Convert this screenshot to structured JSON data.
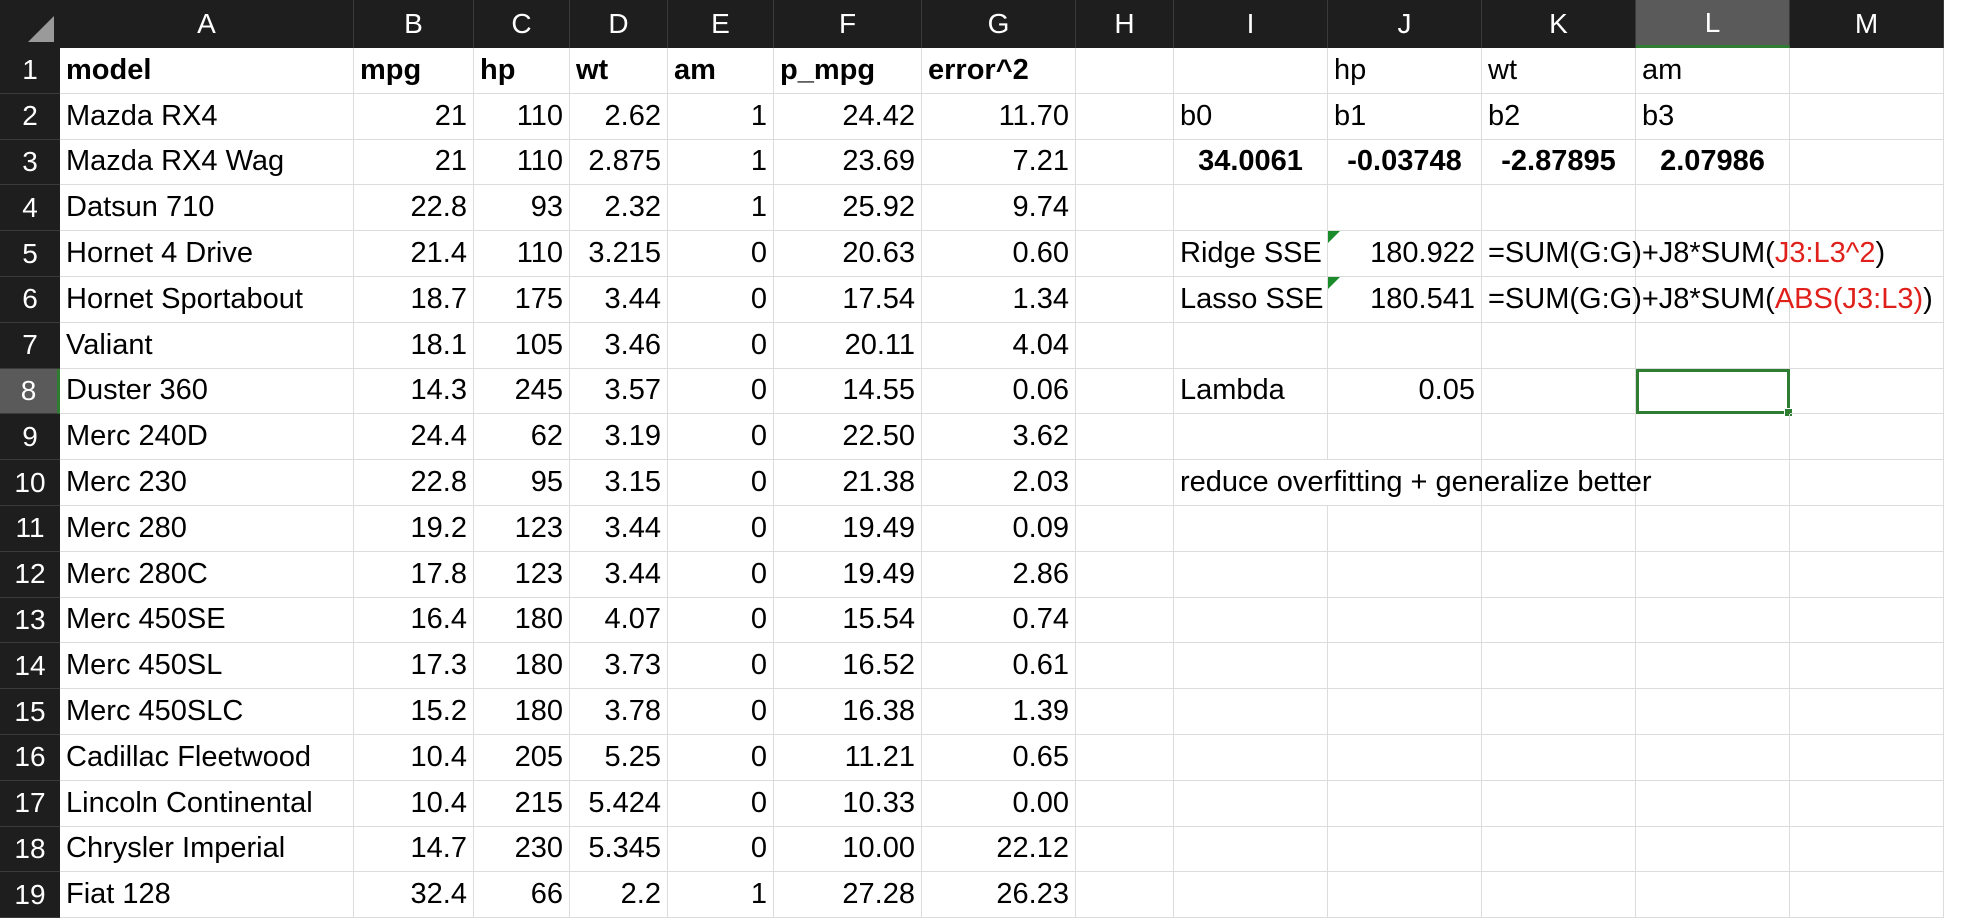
{
  "columns": [
    "A",
    "B",
    "C",
    "D",
    "E",
    "F",
    "G",
    "H",
    "I",
    "J",
    "K",
    "L",
    "M"
  ],
  "selected_column": "L",
  "selected_row": "8",
  "rows": [
    "1",
    "2",
    "3",
    "4",
    "5",
    "6",
    "7",
    "8",
    "9",
    "10",
    "11",
    "12",
    "13",
    "14",
    "15",
    "16",
    "17",
    "18",
    "19"
  ],
  "table": {
    "headers": [
      "model",
      "mpg",
      "hp",
      "wt",
      "am",
      "p_mpg",
      "error^2"
    ],
    "data": [
      [
        "Mazda RX4",
        "21",
        "110",
        "2.62",
        "1",
        "24.42",
        "11.70"
      ],
      [
        "Mazda RX4 Wag",
        "21",
        "110",
        "2.875",
        "1",
        "23.69",
        "7.21"
      ],
      [
        "Datsun 710",
        "22.8",
        "93",
        "2.32",
        "1",
        "25.92",
        "9.74"
      ],
      [
        "Hornet 4 Drive",
        "21.4",
        "110",
        "3.215",
        "0",
        "20.63",
        "0.60"
      ],
      [
        "Hornet Sportabout",
        "18.7",
        "175",
        "3.44",
        "0",
        "17.54",
        "1.34"
      ],
      [
        "Valiant",
        "18.1",
        "105",
        "3.46",
        "0",
        "20.11",
        "4.04"
      ],
      [
        "Duster 360",
        "14.3",
        "245",
        "3.57",
        "0",
        "14.55",
        "0.06"
      ],
      [
        "Merc 240D",
        "24.4",
        "62",
        "3.19",
        "0",
        "22.50",
        "3.62"
      ],
      [
        "Merc 230",
        "22.8",
        "95",
        "3.15",
        "0",
        "21.38",
        "2.03"
      ],
      [
        "Merc 280",
        "19.2",
        "123",
        "3.44",
        "0",
        "19.49",
        "0.09"
      ],
      [
        "Merc 280C",
        "17.8",
        "123",
        "3.44",
        "0",
        "19.49",
        "2.86"
      ],
      [
        "Merc 450SE",
        "16.4",
        "180",
        "4.07",
        "0",
        "15.54",
        "0.74"
      ],
      [
        "Merc 450SL",
        "17.3",
        "180",
        "3.73",
        "0",
        "16.52",
        "0.61"
      ],
      [
        "Merc 450SLC",
        "15.2",
        "180",
        "3.78",
        "0",
        "16.38",
        "1.39"
      ],
      [
        "Cadillac Fleetwood",
        "10.4",
        "205",
        "5.25",
        "0",
        "11.21",
        "0.65"
      ],
      [
        "Lincoln Continental",
        "10.4",
        "215",
        "5.424",
        "0",
        "10.33",
        "0.00"
      ],
      [
        "Chrysler Imperial",
        "14.7",
        "230",
        "5.345",
        "0",
        "10.00",
        "22.12"
      ],
      [
        "Fiat 128",
        "32.4",
        "66",
        "2.2",
        "1",
        "27.28",
        "26.23"
      ]
    ]
  },
  "coefficients": {
    "var_labels": [
      "",
      "hp",
      "wt",
      "am"
    ],
    "coef_labels": [
      "b0",
      "b1",
      "b2",
      "b3"
    ],
    "values": [
      "34.0061",
      "-0.03748",
      "-2.87895",
      "2.07986"
    ]
  },
  "ridge": {
    "label": "Ridge SSE",
    "value": "180.922",
    "formula_prefix": "=SUM(G:G)+J8*SUM(",
    "formula_ref": "J3:L3^2",
    "formula_suffix": ")"
  },
  "lasso": {
    "label": "Lasso SSE",
    "value": "180.541",
    "formula_prefix": "=SUM(G:G)+J8*SUM(",
    "formula_ref": "ABS(J3:L3)",
    "formula_suffix": ")"
  },
  "lambda": {
    "label": "Lambda",
    "value": "0.05"
  },
  "note": "reduce overfitting + generalize better",
  "colors": {
    "header_bg": "#1e1e1e",
    "selection": "#2e7d32",
    "formula_ref": "#e0201a"
  }
}
